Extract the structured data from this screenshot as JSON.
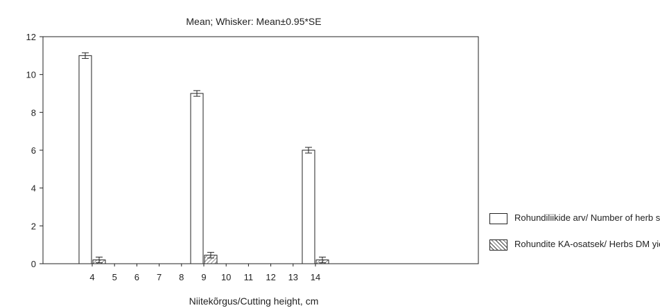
{
  "chart_data": {
    "type": "bar",
    "title": "Mean; Whisker: Mean±0.95*SE",
    "xlabel": "Niitekõrgus/Cutting height, cm",
    "ylabel": "",
    "categories": [
      "4",
      "5",
      "6",
      "7",
      "8",
      "9",
      "10",
      "11",
      "12",
      "13",
      "14"
    ],
    "ylim": [
      0,
      12
    ],
    "yticks": [
      "0",
      "2",
      "4",
      "6",
      "8",
      "10",
      "12"
    ],
    "series": [
      {
        "name": "Rohundiliikide arv/ Number of herb species",
        "fill": "plain",
        "values": [
          11,
          null,
          null,
          null,
          null,
          9,
          null,
          null,
          null,
          null,
          6
        ]
      },
      {
        "name": "Rohundite KA-osatsek/ Herbs DM yield",
        "fill": "hatched",
        "values": [
          0.2,
          null,
          null,
          null,
          null,
          0.45,
          null,
          null,
          null,
          null,
          0.2
        ]
      }
    ],
    "error_half_width": 0.15,
    "legend_position": "right",
    "grid": false
  },
  "colors": {
    "bar_fill": "#ffffff",
    "bar_stroke": "#222222",
    "axis": "#222222"
  }
}
